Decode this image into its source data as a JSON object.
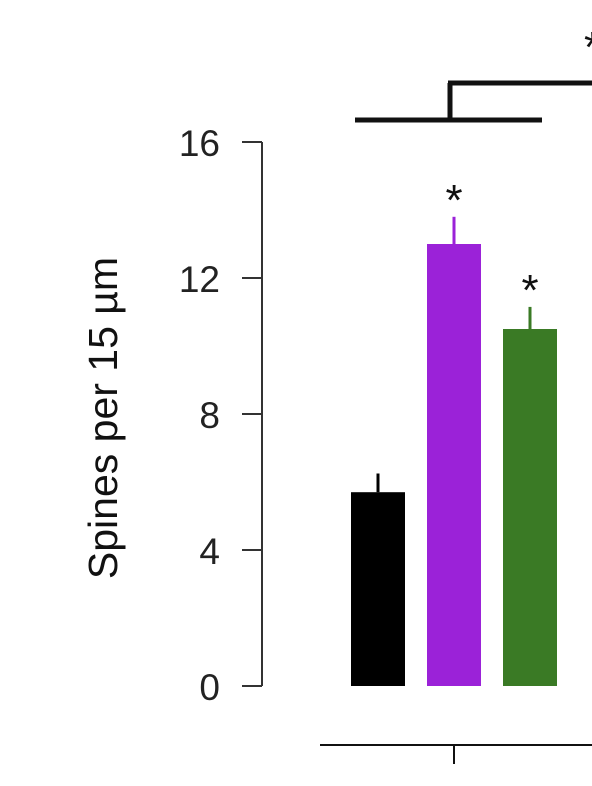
{
  "chart_data": {
    "type": "bar",
    "ylabel": "Spines per 15 µm",
    "ylim": [
      0,
      16
    ],
    "yticks": [
      "0",
      "4",
      "8",
      "12",
      "16"
    ],
    "grid": false,
    "series": [
      {
        "values": [
          5.7,
          13.0,
          10.5
        ],
        "errors": [
          0.55,
          0.8,
          0.65
        ],
        "colors": [
          "#000000",
          "#9b22d8",
          "#3a7a25"
        ],
        "annotations": [
          "",
          "*",
          "*"
        ]
      }
    ],
    "significance_marker": "*"
  }
}
